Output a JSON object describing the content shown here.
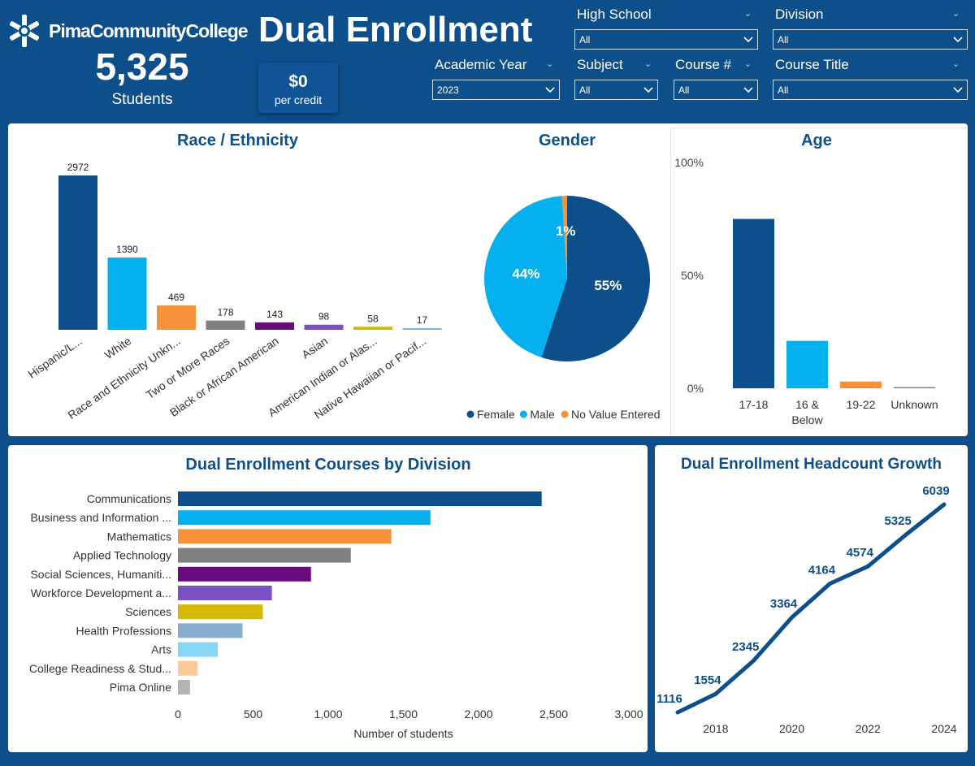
{
  "header": {
    "logo_text": "PimaCommunityCollege",
    "title": "Dual Enrollment",
    "students_count": "5,325",
    "students_label": "Students",
    "price_value": "$0",
    "price_label": "per credit"
  },
  "filters": {
    "high_school": {
      "label": "High School",
      "value": "All"
    },
    "division": {
      "label": "Division",
      "value": "All"
    },
    "academic_year": {
      "label": "Academic Year",
      "value": "2023"
    },
    "subject": {
      "label": "Subject",
      "value": "All"
    },
    "course_num": {
      "label": "Course #",
      "value": "All"
    },
    "course_title": {
      "label": "Course Title",
      "value": "All"
    }
  },
  "colors": {
    "navy": "#0d4f8b",
    "sky": "#05b0ef",
    "orange": "#f7923a",
    "gray": "#808080",
    "purple": "#6a0b7d",
    "violet": "#7a50c6",
    "gold": "#d6b800",
    "steel": "#8aaed0",
    "light_sky": "#86d6f7",
    "peach": "#fbc996",
    "silver": "#b3b3b3"
  },
  "chart_data": [
    {
      "id": "race",
      "type": "bar",
      "title": "Race / Ethnicity",
      "categories": [
        "Hispanic/L...",
        "White",
        "Race and Ethnicity Unkn...",
        "Two or More Races",
        "Black or African American",
        "Asian",
        "American Indian or Alas...",
        "Native Hawaiian or Pacif..."
      ],
      "values": [
        2972,
        1390,
        469,
        178,
        143,
        98,
        58,
        17
      ],
      "colors": [
        "#0d4f8b",
        "#05b0ef",
        "#f7923a",
        "#808080",
        "#6a0b7d",
        "#7a50c6",
        "#d6b800",
        "#8aaed0"
      ]
    },
    {
      "id": "gender",
      "type": "pie",
      "title": "Gender",
      "labels": [
        "Female",
        "Male",
        "No Value Entered"
      ],
      "values": [
        55,
        44,
        1
      ],
      "value_labels": [
        "55%",
        "44%",
        "1%"
      ],
      "colors": [
        "#0d4f8b",
        "#05b0ef",
        "#f7923a"
      ]
    },
    {
      "id": "age",
      "type": "bar",
      "title": "Age",
      "categories": [
        "17-18",
        "16 & Below",
        "19-22",
        "Unknown"
      ],
      "category_lines": [
        [
          "17-18"
        ],
        [
          "16 &",
          "Below"
        ],
        [
          "19-22"
        ],
        [
          "Unknown"
        ]
      ],
      "values": [
        75,
        21,
        3,
        0.3
      ],
      "ylim": [
        0,
        100
      ],
      "yticks": [
        "0%",
        "50%",
        "100%"
      ],
      "colors": [
        "#0d4f8b",
        "#05b0ef",
        "#f7923a",
        "#808080"
      ]
    },
    {
      "id": "division",
      "type": "bar",
      "orientation": "horizontal",
      "title": "Dual Enrollment Courses by Division",
      "categories": [
        "Communications",
        "Business and Information ...",
        "Mathematics",
        "Applied Technology",
        "Social Sciences, Humaniti...",
        "Workforce Development a...",
        "Sciences",
        "Health Professions",
        "Arts",
        "College Readiness & Stud...",
        "Pima Online"
      ],
      "values": [
        2420,
        1680,
        1420,
        1150,
        885,
        625,
        565,
        430,
        265,
        130,
        80
      ],
      "xlim": [
        0,
        3000
      ],
      "xticks": [
        "0",
        "500",
        "1,000",
        "1,500",
        "2,000",
        "2,500",
        "3,000"
      ],
      "xlabel": "Number of students",
      "colors": [
        "#0d4f8b",
        "#05b0ef",
        "#f7923a",
        "#808080",
        "#6a0b7d",
        "#7a50c6",
        "#d6b800",
        "#8aaed0",
        "#86d6f7",
        "#fbc996",
        "#b3b3b3"
      ]
    },
    {
      "id": "growth",
      "type": "line",
      "title": "Dual Enrollment Headcount Growth",
      "x": [
        2017,
        2018,
        2019,
        2020,
        2021,
        2022,
        2023,
        2024
      ],
      "values": [
        1116,
        1554,
        2345,
        3364,
        4164,
        4574,
        5325,
        6039
      ],
      "xticks": [
        "2018",
        "2020",
        "2022",
        "2024"
      ],
      "color": "#0d4f8b"
    }
  ]
}
